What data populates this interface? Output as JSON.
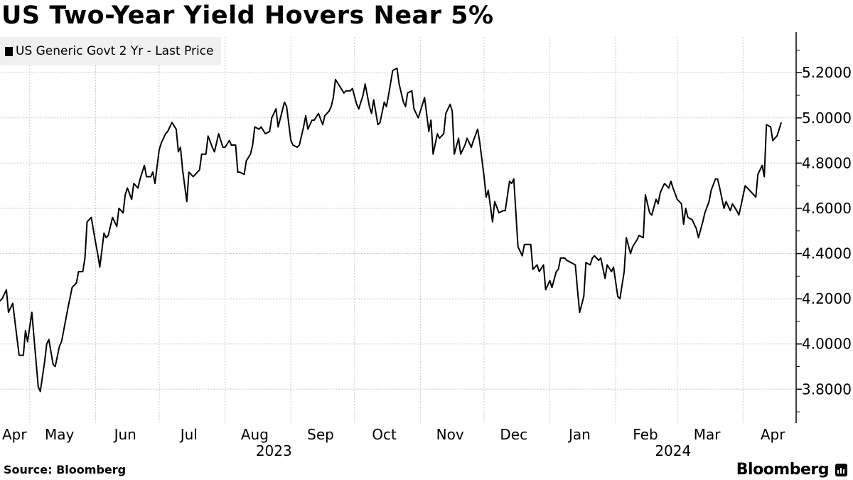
{
  "title": "US Two-Year Yield Hovers Near 5%",
  "source": "Source: Bloomberg",
  "logo_text": "Bloomberg",
  "chart_data": {
    "type": "line",
    "title": "US Two-Year Yield Hovers Near 5%",
    "legend_position": "top-left",
    "grid": true,
    "line_color": "#000000",
    "legend_bg": "#f0f0f0",
    "xlim": [
      "2023-04-17",
      "2024-04-26"
    ],
    "ylim": [
      3.65,
      5.38
    ],
    "y_axis_side": "right",
    "yticks": [
      3.8,
      4.0,
      4.2,
      4.4,
      4.6,
      4.8,
      5.0,
      5.2
    ],
    "ytick_labels": [
      "3.8000",
      "4.0000",
      "4.2000",
      "4.4000",
      "4.6000",
      "4.8000",
      "5.0000",
      "5.2000"
    ],
    "xtick_labels": [
      {
        "month": "2023-04",
        "label": "Apr"
      },
      {
        "month": "2023-05",
        "label": "May"
      },
      {
        "month": "2023-06",
        "label": "Jun"
      },
      {
        "month": "2023-07",
        "label": "Jul"
      },
      {
        "month": "2023-08",
        "label": "Aug"
      },
      {
        "month": "2023-09",
        "label": "Sep"
      },
      {
        "month": "2023-10",
        "label": "Oct"
      },
      {
        "month": "2023-11",
        "label": "Nov"
      },
      {
        "month": "2023-12",
        "label": "Dec"
      },
      {
        "month": "2024-01",
        "label": "Jan"
      },
      {
        "month": "2024-02",
        "label": "Feb"
      },
      {
        "month": "2024-03",
        "label": "Mar"
      },
      {
        "month": "2024-04",
        "label": "Apr"
      }
    ],
    "year_labels": [
      "2023",
      "2024"
    ],
    "series": [
      {
        "name": "US Generic Govt 2 Yr - Last Price",
        "points": [
          [
            "2023-04-17",
            4.19
          ],
          [
            "2023-04-18",
            4.2
          ],
          [
            "2023-04-20",
            4.24
          ],
          [
            "2023-04-21",
            4.14
          ],
          [
            "2023-04-23",
            4.18
          ],
          [
            "2023-04-26",
            3.95
          ],
          [
            "2023-04-28",
            3.95
          ],
          [
            "2023-04-29",
            4.06
          ],
          [
            "2023-04-30",
            4.01
          ],
          [
            "2023-05-02",
            4.14
          ],
          [
            "2023-05-05",
            3.81
          ],
          [
            "2023-05-06",
            3.79
          ],
          [
            "2023-05-08",
            3.92
          ],
          [
            "2023-05-09",
            4.0
          ],
          [
            "2023-05-10",
            4.02
          ],
          [
            "2023-05-12",
            3.91
          ],
          [
            "2023-05-13",
            3.9
          ],
          [
            "2023-05-15",
            3.99
          ],
          [
            "2023-05-16",
            4.01
          ],
          [
            "2023-05-19",
            4.16
          ],
          [
            "2023-05-21",
            4.25
          ],
          [
            "2023-05-23",
            4.27
          ],
          [
            "2023-05-24",
            4.32
          ],
          [
            "2023-05-26",
            4.32
          ],
          [
            "2023-05-27",
            4.38
          ],
          [
            "2023-05-28",
            4.54
          ],
          [
            "2023-05-30",
            4.56
          ],
          [
            "2023-06-01",
            4.45
          ],
          [
            "2023-06-02",
            4.4
          ],
          [
            "2023-06-03",
            4.34
          ],
          [
            "2023-06-05",
            4.49
          ],
          [
            "2023-06-06",
            4.47
          ],
          [
            "2023-06-07",
            4.48
          ],
          [
            "2023-06-09",
            4.56
          ],
          [
            "2023-06-11",
            4.52
          ],
          [
            "2023-06-12",
            4.6
          ],
          [
            "2023-06-14",
            4.58
          ],
          [
            "2023-06-15",
            4.66
          ],
          [
            "2023-06-16",
            4.69
          ],
          [
            "2023-06-18",
            4.64
          ],
          [
            "2023-06-19",
            4.71
          ],
          [
            "2023-06-21",
            4.69
          ],
          [
            "2023-06-22",
            4.73
          ],
          [
            "2023-06-24",
            4.79
          ],
          [
            "2023-06-25",
            4.74
          ],
          [
            "2023-06-27",
            4.74
          ],
          [
            "2023-06-28",
            4.76
          ],
          [
            "2023-06-29",
            4.71
          ],
          [
            "2023-07-01",
            4.86
          ],
          [
            "2023-07-02",
            4.89
          ],
          [
            "2023-07-04",
            4.93
          ],
          [
            "2023-07-05",
            4.94
          ],
          [
            "2023-07-07",
            4.98
          ],
          [
            "2023-07-09",
            4.95
          ],
          [
            "2023-07-10",
            4.85
          ],
          [
            "2023-07-11",
            4.87
          ],
          [
            "2023-07-12",
            4.77
          ],
          [
            "2023-07-14",
            4.63
          ],
          [
            "2023-07-15",
            4.76
          ],
          [
            "2023-07-17",
            4.74
          ],
          [
            "2023-07-19",
            4.76
          ],
          [
            "2023-07-20",
            4.77
          ],
          [
            "2023-07-21",
            4.84
          ],
          [
            "2023-07-23",
            4.84
          ],
          [
            "2023-07-24",
            4.92
          ],
          [
            "2023-07-26",
            4.87
          ],
          [
            "2023-07-27",
            4.85
          ],
          [
            "2023-07-29",
            4.93
          ],
          [
            "2023-07-31",
            4.87
          ],
          [
            "2023-08-01",
            4.87
          ],
          [
            "2023-08-03",
            4.9
          ],
          [
            "2023-08-04",
            4.88
          ],
          [
            "2023-08-06",
            4.88
          ],
          [
            "2023-08-07",
            4.76
          ],
          [
            "2023-08-08",
            4.76
          ],
          [
            "2023-08-10",
            4.75
          ],
          [
            "2023-08-11",
            4.81
          ],
          [
            "2023-08-13",
            4.84
          ],
          [
            "2023-08-14",
            4.88
          ],
          [
            "2023-08-15",
            4.96
          ],
          [
            "2023-08-17",
            4.95
          ],
          [
            "2023-08-18",
            4.96
          ],
          [
            "2023-08-20",
            4.93
          ],
          [
            "2023-08-22",
            4.94
          ],
          [
            "2023-08-23",
            5.0
          ],
          [
            "2023-08-25",
            5.04
          ],
          [
            "2023-08-26",
            4.96
          ],
          [
            "2023-08-29",
            5.07
          ],
          [
            "2023-08-30",
            5.05
          ],
          [
            "2023-09-01",
            4.9
          ],
          [
            "2023-09-02",
            4.88
          ],
          [
            "2023-09-04",
            4.87
          ],
          [
            "2023-09-05",
            4.88
          ],
          [
            "2023-09-07",
            4.96
          ],
          [
            "2023-09-08",
            5.01
          ],
          [
            "2023-09-09",
            4.95
          ],
          [
            "2023-09-11",
            4.99
          ],
          [
            "2023-09-12",
            4.99
          ],
          [
            "2023-09-14",
            5.02
          ],
          [
            "2023-09-16",
            4.97
          ],
          [
            "2023-09-17",
            5.01
          ],
          [
            "2023-09-19",
            5.03
          ],
          [
            "2023-09-20",
            5.05
          ],
          [
            "2023-09-21",
            5.09
          ],
          [
            "2023-09-22",
            5.17
          ],
          [
            "2023-09-24",
            5.14
          ],
          [
            "2023-09-26",
            5.11
          ],
          [
            "2023-09-27",
            5.12
          ],
          [
            "2023-09-29",
            5.12
          ],
          [
            "2023-09-30",
            5.13
          ],
          [
            "2023-10-02",
            5.06
          ],
          [
            "2023-10-03",
            5.04
          ],
          [
            "2023-10-05",
            5.1
          ],
          [
            "2023-10-06",
            5.15
          ],
          [
            "2023-10-08",
            5.05
          ],
          [
            "2023-10-09",
            5.02
          ],
          [
            "2023-10-10",
            5.08
          ],
          [
            "2023-10-12",
            4.97
          ],
          [
            "2023-10-13",
            4.98
          ],
          [
            "2023-10-15",
            5.07
          ],
          [
            "2023-10-16",
            5.05
          ],
          [
            "2023-10-17",
            5.1
          ],
          [
            "2023-10-19",
            5.21
          ],
          [
            "2023-10-21",
            5.22
          ],
          [
            "2023-10-22",
            5.15
          ],
          [
            "2023-10-24",
            5.07
          ],
          [
            "2023-10-25",
            5.05
          ],
          [
            "2023-10-26",
            5.11
          ],
          [
            "2023-10-28",
            5.12
          ],
          [
            "2023-10-29",
            5.04
          ],
          [
            "2023-10-31",
            5.0
          ],
          [
            "2023-11-03",
            5.09
          ],
          [
            "2023-11-05",
            4.94
          ],
          [
            "2023-11-06",
            4.99
          ],
          [
            "2023-11-07",
            4.84
          ],
          [
            "2023-11-09",
            4.93
          ],
          [
            "2023-11-10",
            4.91
          ],
          [
            "2023-11-12",
            4.93
          ],
          [
            "2023-11-13",
            5.02
          ],
          [
            "2023-11-15",
            5.06
          ],
          [
            "2023-11-16",
            5.03
          ],
          [
            "2023-11-17",
            4.84
          ],
          [
            "2023-11-19",
            4.91
          ],
          [
            "2023-11-20",
            4.84
          ],
          [
            "2023-11-22",
            4.88
          ],
          [
            "2023-11-23",
            4.91
          ],
          [
            "2023-11-25",
            4.87
          ],
          [
            "2023-11-26",
            4.9
          ],
          [
            "2023-11-28",
            4.95
          ],
          [
            "2023-11-29",
            4.89
          ],
          [
            "2023-12-01",
            4.74
          ],
          [
            "2023-12-02",
            4.65
          ],
          [
            "2023-12-03",
            4.68
          ],
          [
            "2023-12-05",
            4.54
          ],
          [
            "2023-12-06",
            4.63
          ],
          [
            "2023-12-08",
            4.58
          ],
          [
            "2023-12-10",
            4.59
          ],
          [
            "2023-12-11",
            4.59
          ],
          [
            "2023-12-13",
            4.72
          ],
          [
            "2023-12-14",
            4.71
          ],
          [
            "2023-12-15",
            4.73
          ],
          [
            "2023-12-17",
            4.43
          ],
          [
            "2023-12-19",
            4.39
          ],
          [
            "2023-12-20",
            4.44
          ],
          [
            "2023-12-22",
            4.44
          ],
          [
            "2023-12-23",
            4.44
          ],
          [
            "2023-12-24",
            4.33
          ],
          [
            "2023-12-26",
            4.35
          ],
          [
            "2023-12-27",
            4.32
          ],
          [
            "2023-12-29",
            4.35
          ],
          [
            "2023-12-30",
            4.24
          ],
          [
            "2024-01-01",
            4.28
          ],
          [
            "2024-01-02",
            4.25
          ],
          [
            "2024-01-04",
            4.32
          ],
          [
            "2024-01-05",
            4.33
          ],
          [
            "2024-01-06",
            4.38
          ],
          [
            "2024-01-08",
            4.38
          ],
          [
            "2024-01-09",
            4.37
          ],
          [
            "2024-01-11",
            4.36
          ],
          [
            "2024-01-13",
            4.35
          ],
          [
            "2024-01-14",
            4.24
          ],
          [
            "2024-01-15",
            4.14
          ],
          [
            "2024-01-17",
            4.21
          ],
          [
            "2024-01-18",
            4.36
          ],
          [
            "2024-01-20",
            4.35
          ],
          [
            "2024-01-21",
            4.38
          ],
          [
            "2024-01-22",
            4.39
          ],
          [
            "2024-01-24",
            4.37
          ],
          [
            "2024-01-25",
            4.38
          ],
          [
            "2024-01-27",
            4.29
          ],
          [
            "2024-01-28",
            4.35
          ],
          [
            "2024-01-30",
            4.32
          ],
          [
            "2024-01-31",
            4.34
          ],
          [
            "2024-02-02",
            4.21
          ],
          [
            "2024-02-03",
            4.2
          ],
          [
            "2024-02-05",
            4.32
          ],
          [
            "2024-02-06",
            4.47
          ],
          [
            "2024-02-08",
            4.4
          ],
          [
            "2024-02-09",
            4.43
          ],
          [
            "2024-02-11",
            4.46
          ],
          [
            "2024-02-12",
            4.48
          ],
          [
            "2024-02-14",
            4.47
          ],
          [
            "2024-02-15",
            4.66
          ],
          [
            "2024-02-17",
            4.58
          ],
          [
            "2024-02-18",
            4.57
          ],
          [
            "2024-02-20",
            4.64
          ],
          [
            "2024-02-21",
            4.62
          ],
          [
            "2024-02-22",
            4.67
          ],
          [
            "2024-02-24",
            4.71
          ],
          [
            "2024-02-26",
            4.69
          ],
          [
            "2024-02-27",
            4.72
          ],
          [
            "2024-02-28",
            4.69
          ],
          [
            "2024-03-01",
            4.64
          ],
          [
            "2024-03-03",
            4.62
          ],
          [
            "2024-03-04",
            4.53
          ],
          [
            "2024-03-05",
            4.6
          ],
          [
            "2024-03-06",
            4.56
          ],
          [
            "2024-03-08",
            4.55
          ],
          [
            "2024-03-10",
            4.51
          ],
          [
            "2024-03-11",
            4.47
          ],
          [
            "2024-03-13",
            4.54
          ],
          [
            "2024-03-14",
            4.58
          ],
          [
            "2024-03-16",
            4.63
          ],
          [
            "2024-03-17",
            4.68
          ],
          [
            "2024-03-19",
            4.73
          ],
          [
            "2024-03-20",
            4.73
          ],
          [
            "2024-03-21",
            4.69
          ],
          [
            "2024-03-23",
            4.6
          ],
          [
            "2024-03-24",
            4.63
          ],
          [
            "2024-03-26",
            4.59
          ],
          [
            "2024-03-27",
            4.62
          ],
          [
            "2024-03-29",
            4.59
          ],
          [
            "2024-03-30",
            4.57
          ],
          [
            "2024-03-31",
            4.61
          ],
          [
            "2024-04-02",
            4.7
          ],
          [
            "2024-04-04",
            4.68
          ],
          [
            "2024-04-05",
            4.67
          ],
          [
            "2024-04-07",
            4.65
          ],
          [
            "2024-04-08",
            4.75
          ],
          [
            "2024-04-10",
            4.79
          ],
          [
            "2024-04-11",
            4.74
          ],
          [
            "2024-04-12",
            4.97
          ],
          [
            "2024-04-14",
            4.96
          ],
          [
            "2024-04-15",
            4.9
          ],
          [
            "2024-04-17",
            4.92
          ],
          [
            "2024-04-19",
            4.98
          ]
        ]
      }
    ]
  }
}
